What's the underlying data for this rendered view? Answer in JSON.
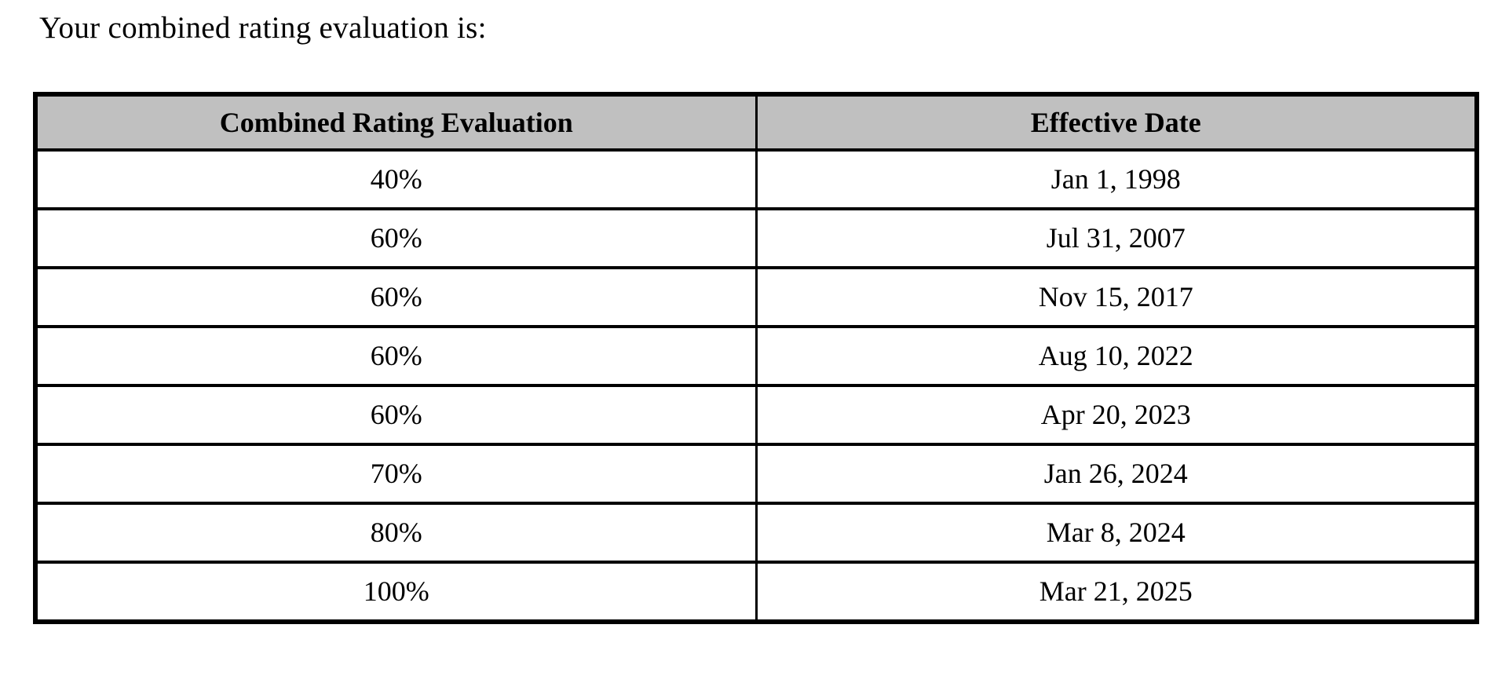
{
  "page": {
    "intro_text": "Your combined rating evaluation is:"
  },
  "table": {
    "columns": [
      "Combined Rating Evaluation",
      "Effective Date"
    ],
    "rows": [
      [
        "40%",
        "Jan 1, 1998"
      ],
      [
        "60%",
        "Jul 31, 2007"
      ],
      [
        "60%",
        "Nov 15, 2017"
      ],
      [
        "60%",
        "Aug 10, 2022"
      ],
      [
        "60%",
        "Apr 20, 2023"
      ],
      [
        "70%",
        "Jan 26, 2024"
      ],
      [
        "80%",
        "Mar 8, 2024"
      ],
      [
        "100%",
        "Mar 21, 2025"
      ]
    ],
    "header_bg": "#c0c0c0",
    "border_color": "#000000"
  }
}
